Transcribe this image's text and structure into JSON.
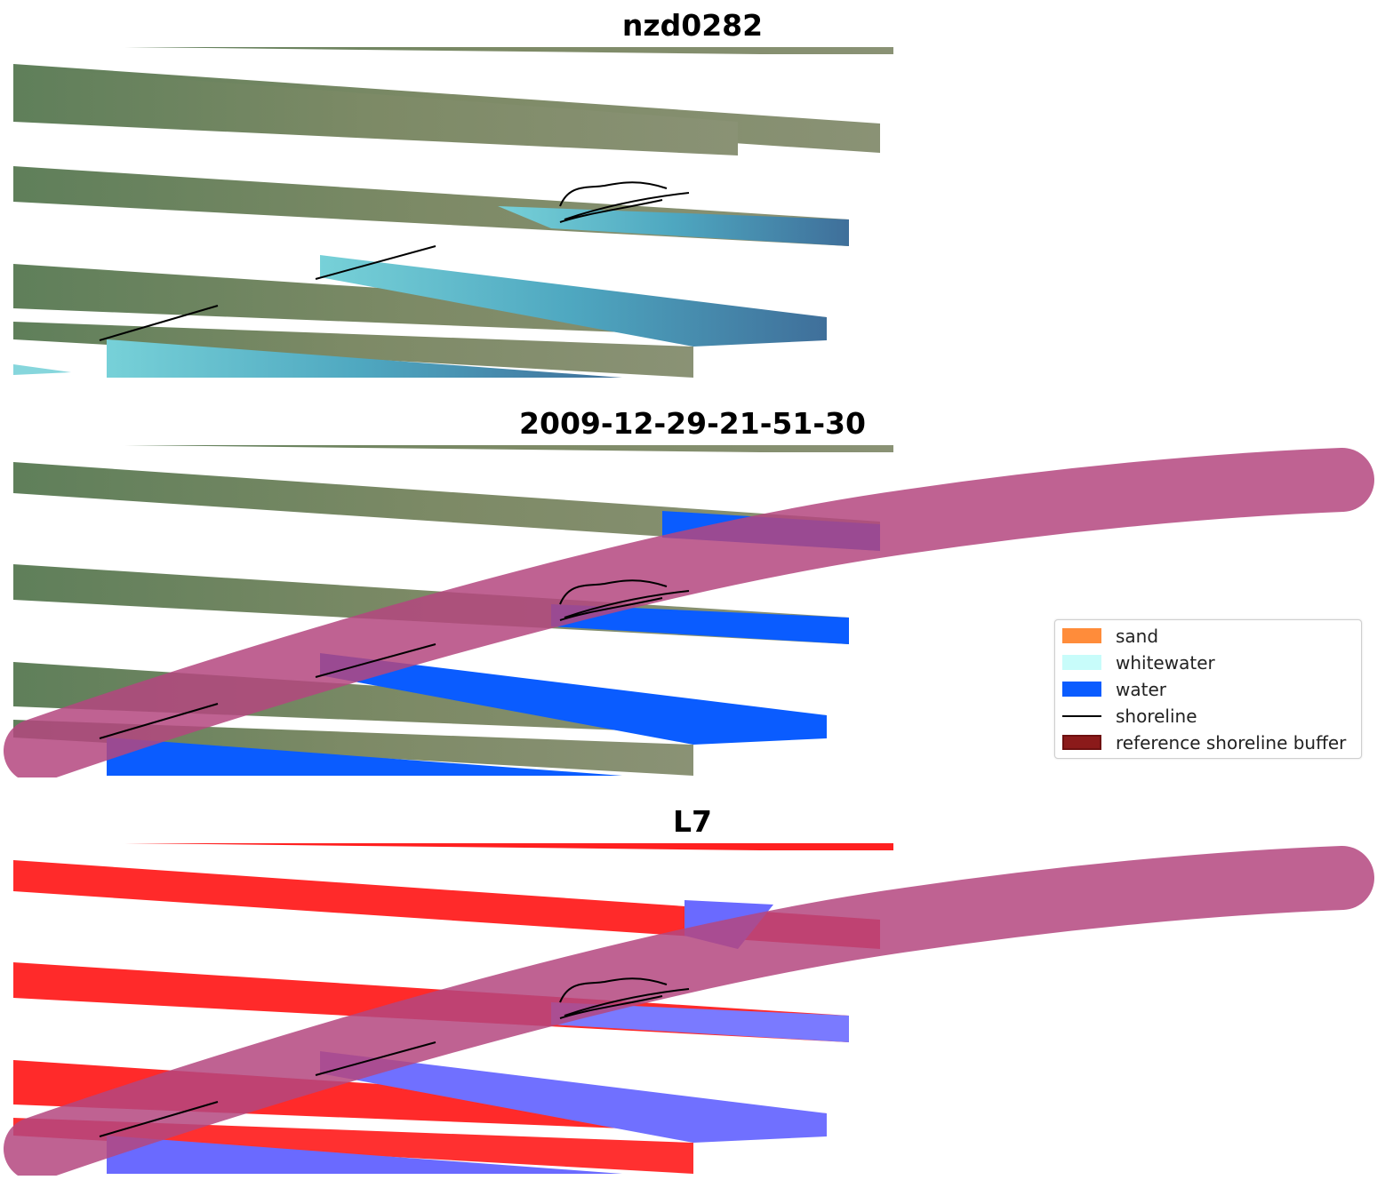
{
  "figure": {
    "titles": {
      "site": "nzd0282",
      "date": "2009-12-29-21-51-30",
      "satellite": "L7"
    }
  },
  "legend": {
    "items": [
      {
        "label": "sand",
        "color": "#ff8c3a",
        "kind": "patch"
      },
      {
        "label": "whitewater",
        "color": "#c8fcfa",
        "kind": "patch"
      },
      {
        "label": "water",
        "color": "#0a5cff",
        "kind": "patch"
      },
      {
        "label": "shoreline",
        "color": "#000000",
        "kind": "line"
      },
      {
        "label": "reference shoreline buffer",
        "color": "#8b1a1a",
        "kind": "patch"
      }
    ]
  },
  "colors": {
    "land": "#6f8a64",
    "sea": "#5eb3c2",
    "water_class": "#0a5cff",
    "buffer": "#b4477f",
    "red_index": "#ff2020",
    "blue_index": "#6a6aff"
  }
}
